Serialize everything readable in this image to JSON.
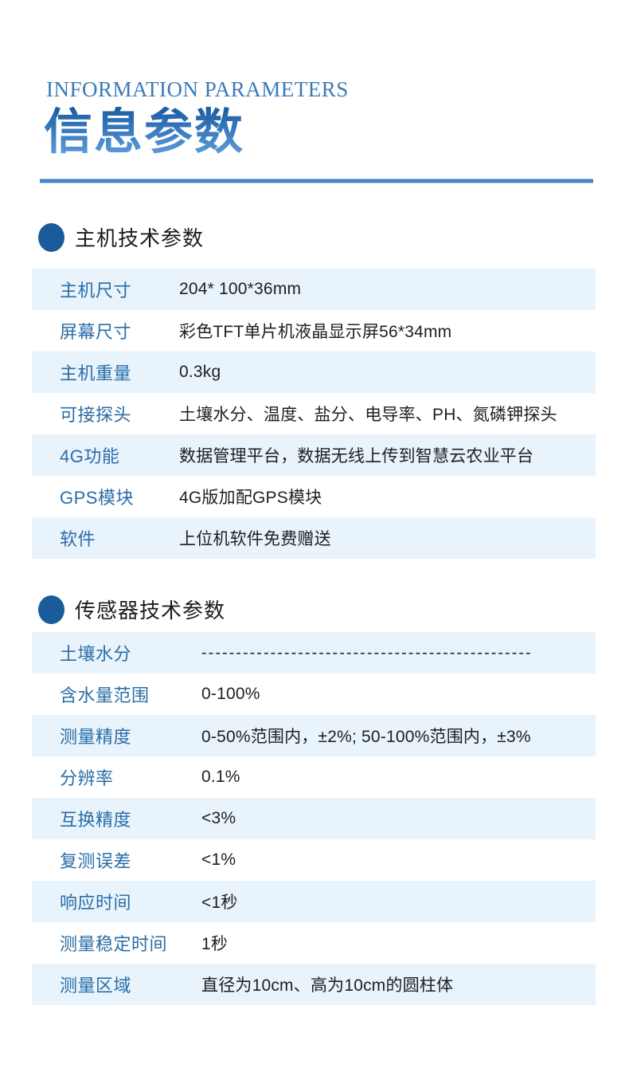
{
  "page": {
    "eyebrow": "INFORMATION PARAMETERS",
    "title": "信息参数"
  },
  "colors": {
    "accent_blue": "#2e6cb0",
    "bullet_blue": "#1a5b9b",
    "row_highlight": "#e8f3fc",
    "label_blue": "#2a6da6",
    "rule_blue": "#4586c5"
  },
  "sections": [
    {
      "heading": "主机技术参数",
      "rows": [
        {
          "label": "主机尺寸",
          "value": "204* 100*36mm"
        },
        {
          "label": "屏幕尺寸",
          "value": "彩色TFT单片机液晶显示屏56*34mm"
        },
        {
          "label": "主机重量",
          "value": "0.3kg"
        },
        {
          "label": "可接探头",
          "value": "土壤水分、温度、盐分、电导率、PH、氮磷钾探头"
        },
        {
          "label": "4G功能",
          "value": "数据管理平台，数据无线上传到智慧云农业平台"
        },
        {
          "label": "GPS模块",
          "value": "4G版加配GPS模块"
        },
        {
          "label": "软件",
          "value": "上位机软件免费赠送"
        }
      ]
    },
    {
      "heading": "传感器技术参数",
      "rows": [
        {
          "label": "土壤水分",
          "value": "------------------------------------------------",
          "dashed": true
        },
        {
          "label": "含水量范围",
          "value": "0-100%"
        },
        {
          "label": "测量精度",
          "value": "0-50%范围内，±2%; 50-100%范围内，±3%"
        },
        {
          "label": "分辨率",
          "value": "0.1%"
        },
        {
          "label": "互换精度",
          "value": "<3%"
        },
        {
          "label": "复测误差",
          "value": "<1%"
        },
        {
          "label": "响应时间",
          "value": "<1秒"
        },
        {
          "label": "测量稳定时间",
          "value": "1秒"
        },
        {
          "label": "测量区域",
          "value": "直径为10cm、高为10cm的圆柱体"
        }
      ]
    }
  ]
}
